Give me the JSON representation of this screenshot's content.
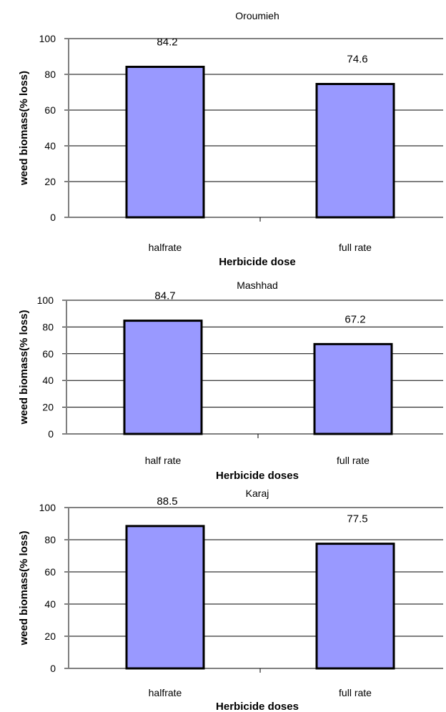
{
  "chart_data": [
    {
      "type": "bar",
      "title": "Oroumieh",
      "xlabel": "Herbicide dose",
      "ylabel": "weed biomass(% loss)",
      "categories": [
        "halfrate",
        "full rate"
      ],
      "values": [
        84.2,
        74.6
      ],
      "data_labels": [
        "84.2",
        "74.6"
      ],
      "ylim": [
        0,
        100
      ],
      "yticks": [
        "0",
        "20",
        "40",
        "60",
        "80",
        "100"
      ],
      "grid": true,
      "colors": {
        "bar": "#9999ff",
        "bar_border": "#000000"
      }
    },
    {
      "type": "bar",
      "title": "Mashhad",
      "xlabel": "Herbicide doses",
      "ylabel": "weed biomass(% loss)",
      "categories": [
        "half rate",
        "full rate"
      ],
      "values": [
        84.7,
        67.2
      ],
      "data_labels": [
        "84.7",
        "67.2"
      ],
      "ylim": [
        0,
        100
      ],
      "yticks": [
        "0",
        "20",
        "40",
        "60",
        "80",
        "100"
      ],
      "grid": true,
      "colors": {
        "bar": "#9999ff",
        "bar_border": "#000000"
      }
    },
    {
      "type": "bar",
      "title": "Karaj",
      "xlabel": "Herbicide doses",
      "ylabel": "weed biomass(% loss)",
      "categories": [
        "halfrate",
        "full rate"
      ],
      "values": [
        88.5,
        77.5
      ],
      "data_labels": [
        "88.5",
        "77.5"
      ],
      "ylim": [
        0,
        100
      ],
      "yticks": [
        "0",
        "20",
        "40",
        "60",
        "80",
        "100"
      ],
      "grid": true,
      "colors": {
        "bar": "#9999ff",
        "bar_border": "#000000"
      }
    }
  ]
}
